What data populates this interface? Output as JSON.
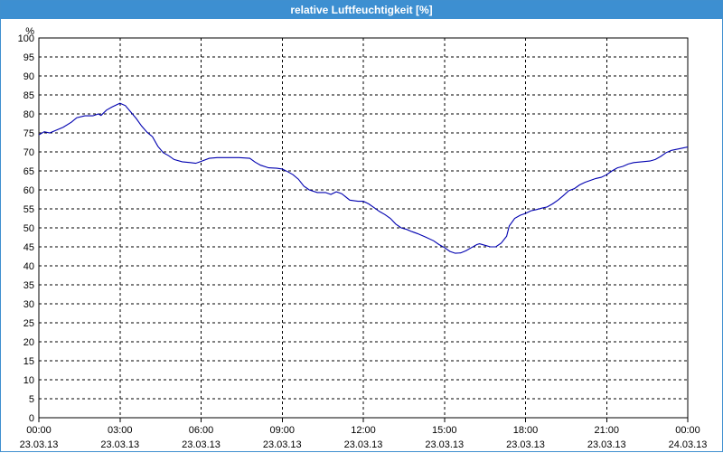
{
  "window": {
    "title": "relative Luftfeuchtigkeit [%]"
  },
  "colors": {
    "titlebar": "#3d8fd1",
    "line": "#0000b0",
    "grid": "#000000"
  },
  "chart_data": {
    "type": "line",
    "title": "relative Luftfeuchtigkeit [%]",
    "ylabel": "%",
    "xlabel": "",
    "ylim": [
      0,
      100
    ],
    "yticks": [
      0,
      5,
      10,
      15,
      20,
      25,
      30,
      35,
      40,
      45,
      50,
      55,
      60,
      65,
      70,
      75,
      80,
      85,
      90,
      95,
      100
    ],
    "xlim_hours": [
      0,
      24
    ],
    "xticks": [
      {
        "h": 0,
        "time": "00:00",
        "date": "23.03.13"
      },
      {
        "h": 3,
        "time": "03:00",
        "date": "23.03.13"
      },
      {
        "h": 6,
        "time": "06:00",
        "date": "23.03.13"
      },
      {
        "h": 9,
        "time": "09:00",
        "date": "23.03.13"
      },
      {
        "h": 12,
        "time": "12:00",
        "date": "23.03.13"
      },
      {
        "h": 15,
        "time": "15:00",
        "date": "23.03.13"
      },
      {
        "h": 18,
        "time": "18:00",
        "date": "23.03.13"
      },
      {
        "h": 21,
        "time": "21:00",
        "date": "23.03.13"
      },
      {
        "h": 24,
        "time": "00:00",
        "date": "24.03.13"
      }
    ],
    "grid": true,
    "series": [
      {
        "values": [
          [
            0.0,
            74.5
          ],
          [
            0.2,
            75.3
          ],
          [
            0.4,
            75.0
          ],
          [
            0.6,
            75.6
          ],
          [
            0.9,
            76.5
          ],
          [
            1.2,
            77.8
          ],
          [
            1.4,
            79.0
          ],
          [
            1.7,
            79.5
          ],
          [
            2.0,
            79.5
          ],
          [
            2.2,
            80.0
          ],
          [
            2.3,
            79.6
          ],
          [
            2.5,
            81.0
          ],
          [
            2.7,
            81.8
          ],
          [
            2.9,
            82.5
          ],
          [
            3.0,
            82.8
          ],
          [
            3.2,
            82.2
          ],
          [
            3.4,
            80.5
          ],
          [
            3.6,
            78.8
          ],
          [
            3.8,
            76.8
          ],
          [
            4.0,
            75.2
          ],
          [
            4.2,
            74.0
          ],
          [
            4.4,
            71.5
          ],
          [
            4.6,
            69.8
          ],
          [
            4.8,
            69.0
          ],
          [
            5.0,
            68.0
          ],
          [
            5.3,
            67.4
          ],
          [
            5.6,
            67.2
          ],
          [
            5.8,
            67.0
          ],
          [
            6.0,
            67.5
          ],
          [
            6.3,
            68.3
          ],
          [
            6.6,
            68.5
          ],
          [
            7.0,
            68.5
          ],
          [
            7.4,
            68.5
          ],
          [
            7.8,
            68.3
          ],
          [
            8.0,
            67.3
          ],
          [
            8.2,
            66.5
          ],
          [
            8.5,
            65.8
          ],
          [
            8.8,
            65.7
          ],
          [
            9.0,
            65.5
          ],
          [
            9.2,
            64.8
          ],
          [
            9.4,
            64.0
          ],
          [
            9.6,
            62.8
          ],
          [
            9.8,
            61.0
          ],
          [
            10.0,
            60.0
          ],
          [
            10.3,
            59.3
          ],
          [
            10.6,
            59.3
          ],
          [
            10.8,
            58.8
          ],
          [
            11.0,
            59.5
          ],
          [
            11.2,
            59.0
          ],
          [
            11.5,
            57.3
          ],
          [
            11.8,
            57.0
          ],
          [
            12.0,
            57.0
          ],
          [
            12.2,
            56.3
          ],
          [
            12.4,
            55.3
          ],
          [
            12.6,
            54.3
          ],
          [
            12.8,
            53.5
          ],
          [
            13.0,
            52.5
          ],
          [
            13.2,
            51.0
          ],
          [
            13.4,
            50.0
          ],
          [
            13.6,
            49.6
          ],
          [
            13.8,
            49.0
          ],
          [
            14.0,
            48.5
          ],
          [
            14.3,
            47.6
          ],
          [
            14.6,
            46.6
          ],
          [
            14.8,
            45.6
          ],
          [
            15.0,
            44.8
          ],
          [
            15.2,
            43.8
          ],
          [
            15.4,
            43.3
          ],
          [
            15.6,
            43.4
          ],
          [
            15.8,
            44.0
          ],
          [
            16.0,
            44.8
          ],
          [
            16.2,
            45.6
          ],
          [
            16.3,
            45.8
          ],
          [
            16.5,
            45.4
          ],
          [
            16.7,
            45.0
          ],
          [
            16.9,
            45.0
          ],
          [
            17.1,
            46.0
          ],
          [
            17.3,
            47.8
          ],
          [
            17.4,
            50.5
          ],
          [
            17.6,
            52.5
          ],
          [
            17.8,
            53.3
          ],
          [
            18.0,
            53.8
          ],
          [
            18.2,
            54.5
          ],
          [
            18.4,
            54.8
          ],
          [
            18.6,
            55.2
          ],
          [
            18.8,
            55.5
          ],
          [
            19.0,
            56.3
          ],
          [
            19.2,
            57.3
          ],
          [
            19.4,
            58.5
          ],
          [
            19.6,
            59.8
          ],
          [
            19.8,
            60.3
          ],
          [
            20.0,
            61.3
          ],
          [
            20.2,
            62.0
          ],
          [
            20.4,
            62.5
          ],
          [
            20.6,
            63.0
          ],
          [
            20.8,
            63.3
          ],
          [
            21.0,
            64.0
          ],
          [
            21.2,
            65.0
          ],
          [
            21.4,
            65.8
          ],
          [
            21.6,
            66.2
          ],
          [
            21.8,
            66.8
          ],
          [
            22.0,
            67.2
          ],
          [
            22.3,
            67.4
          ],
          [
            22.6,
            67.6
          ],
          [
            22.8,
            68.0
          ],
          [
            23.0,
            68.8
          ],
          [
            23.2,
            69.8
          ],
          [
            23.4,
            70.4
          ],
          [
            23.6,
            70.7
          ],
          [
            23.8,
            71.0
          ],
          [
            24.0,
            71.3
          ],
          [
            24.2,
            72.0
          ],
          [
            24.4,
            72.5
          ]
        ]
      }
    ]
  }
}
